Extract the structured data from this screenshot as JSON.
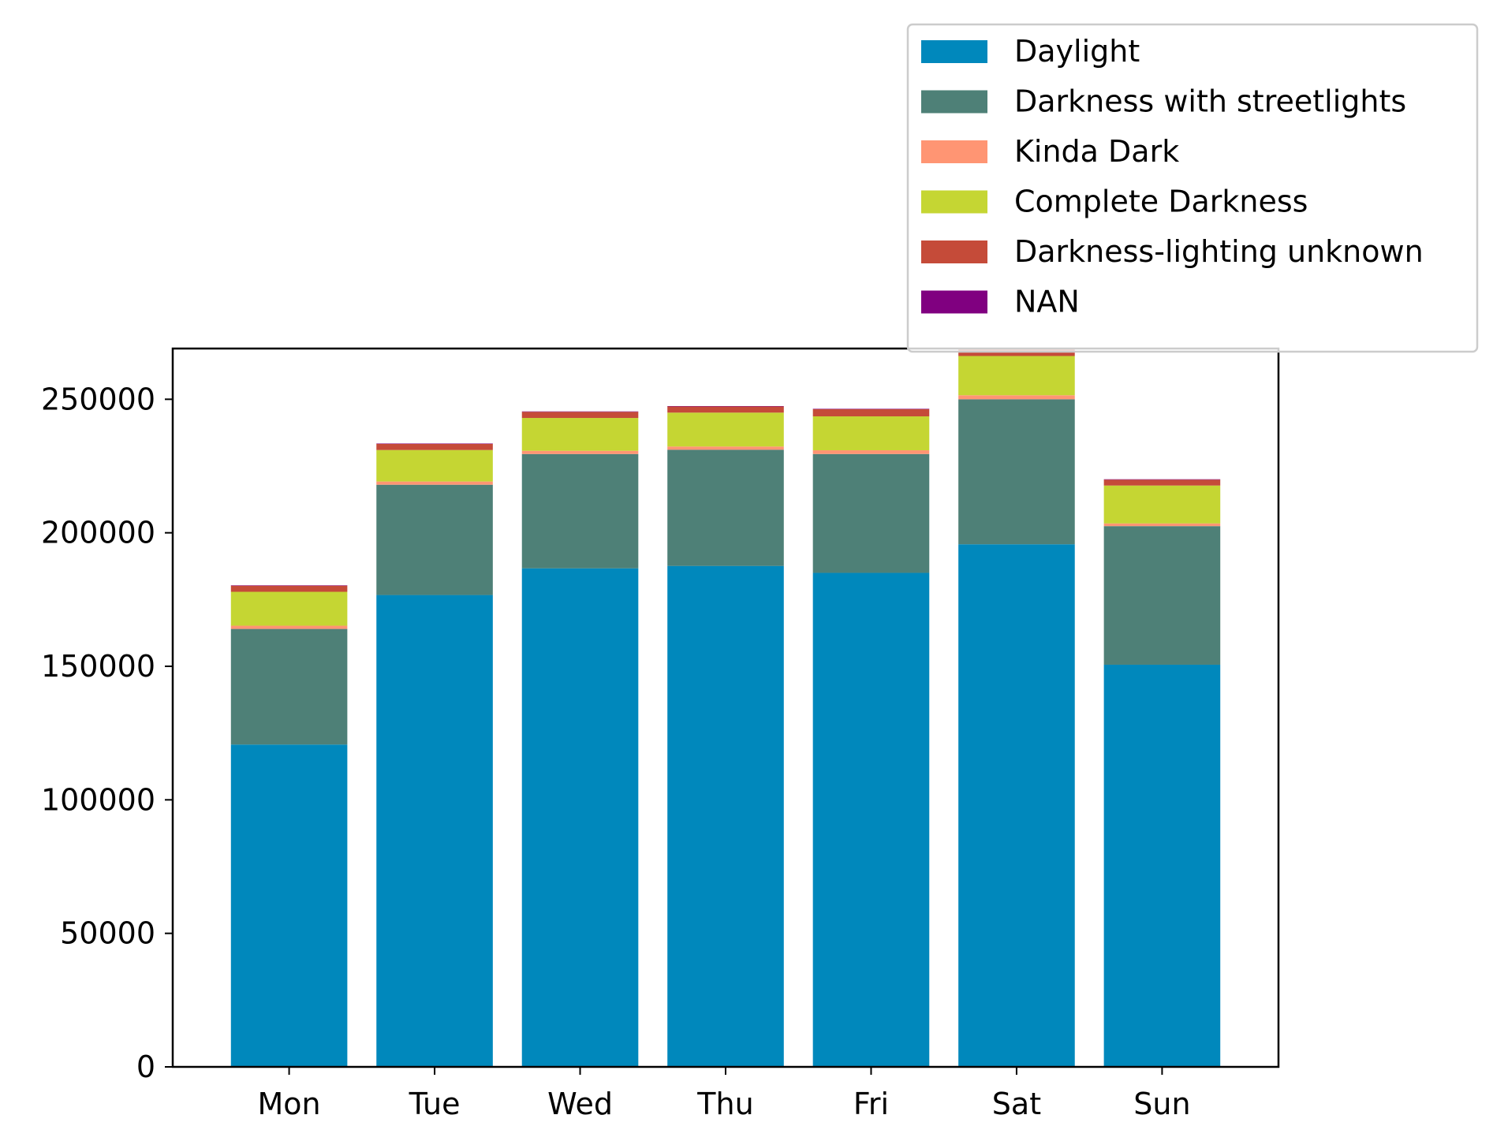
{
  "chart_data": {
    "type": "bar",
    "stacked": true,
    "categories": [
      "Mon",
      "Tue",
      "Wed",
      "Thu",
      "Fri",
      "Sat",
      "Sun"
    ],
    "series": [
      {
        "name": "Daylight",
        "color": "#0088bc",
        "values": [
          120700,
          176700,
          186700,
          187600,
          185000,
          195700,
          150600
        ]
      },
      {
        "name": "Darkness with streetlights",
        "color": "#4e8077",
        "values": [
          43300,
          41300,
          42800,
          43500,
          44500,
          54300,
          51900
        ]
      },
      {
        "name": "Kinda Dark",
        "color": "#ff9573",
        "values": [
          1200,
          1200,
          1200,
          1200,
          1400,
          1500,
          1000
        ]
      },
      {
        "name": "Complete Darkness",
        "color": "#c5d633",
        "values": [
          12700,
          11800,
          12300,
          12700,
          12700,
          14700,
          14200
        ]
      },
      {
        "name": "Darkness-lighting unknown",
        "color": "#c54b39",
        "values": [
          2300,
          2300,
          2300,
          2300,
          2700,
          2800,
          2200
        ]
      },
      {
        "name": "NAN",
        "color": "#800080",
        "values": [
          150,
          150,
          150,
          150,
          150,
          150,
          150
        ]
      }
    ],
    "yticks": [
      0,
      50000,
      100000,
      150000,
      200000,
      250000
    ],
    "ylim": [
      0,
      269000
    ],
    "title": "",
    "xlabel": "",
    "ylabel": "",
    "legend": "upper-right, outside above plot",
    "grid": false
  }
}
